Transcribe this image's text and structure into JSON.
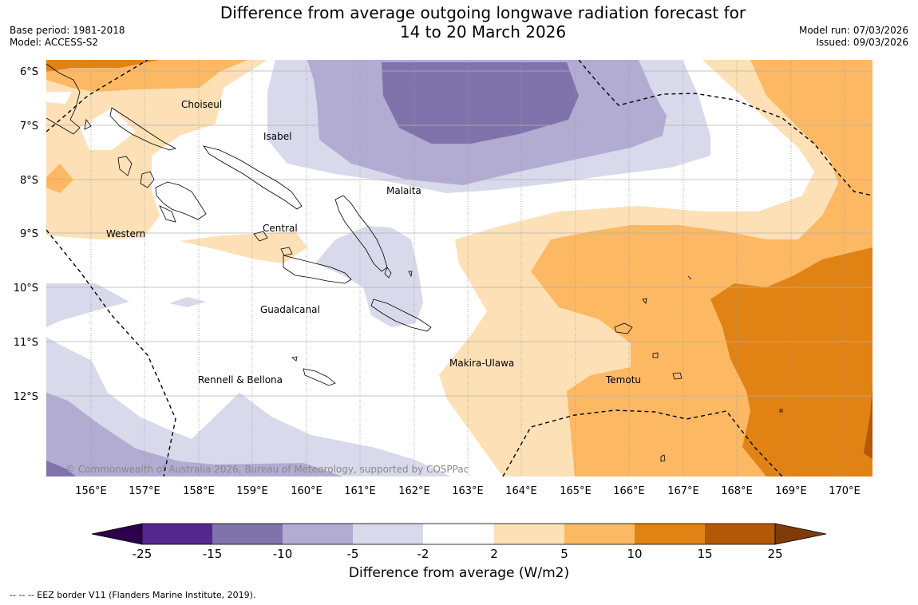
{
  "title": {
    "line1": "Difference from average outgoing longwave radiation forecast for",
    "line2": "14 to 20 March 2026"
  },
  "meta_left": {
    "base_period": "Base period: 1981-2018",
    "model": "Model: ACCESS-S2"
  },
  "meta_right": {
    "model_run": "Model run: 07/03/2026",
    "issued": "Issued: 09/03/2026"
  },
  "map": {
    "lon_ticks": [
      "156°E",
      "157°E",
      "158°E",
      "159°E",
      "160°E",
      "161°E",
      "162°E",
      "163°E",
      "164°E",
      "165°E",
      "166°E",
      "167°E",
      "168°E",
      "169°E",
      "170°E"
    ],
    "lat_ticks": [
      "6°S",
      "7°S",
      "8°S",
      "9°S",
      "10°S",
      "11°S",
      "12°S"
    ],
    "provinces": [
      {
        "name": "Choiseul",
        "lon": 157.7,
        "lat": -6.6
      },
      {
        "name": "Isabel",
        "lon": 159.3,
        "lat": -7.2
      },
      {
        "name": "Malaita",
        "lon": 161.0,
        "lat": -8.2
      },
      {
        "name": "Western",
        "lon": 156.3,
        "lat": -9.0
      },
      {
        "name": "Central",
        "lon": 159.4,
        "lat": -8.9
      },
      {
        "name": "Guadalcanal",
        "lon": 159.6,
        "lat": -10.4
      },
      {
        "name": "Makira-Ulawa",
        "lon": 162.7,
        "lat": -11.4
      },
      {
        "name": "Rennell & Bellona",
        "lon": 158.8,
        "lat": -11.7
      },
      {
        "name": "Temotu",
        "lon": 165.9,
        "lat": -11.7
      }
    ],
    "copyright": "© Commonwealth of Australia 2026, Bureau of Meteorology, supported by COSPPac"
  },
  "colorbar": {
    "label": "Difference from average (W/m2)",
    "ticks": [
      "-25",
      "-15",
      "-10",
      "-5",
      "-2",
      "2",
      "5",
      "10",
      "15",
      "25"
    ],
    "colors": [
      "#54278f",
      "#8073ac",
      "#b2abd2",
      "#d8daeb",
      "#ffffff",
      "#fee0b6",
      "#fdb863",
      "#e08214",
      "#b35806"
    ],
    "extend_low": "#2d004b",
    "extend_high": "#7f3b08"
  },
  "footer": "--  --  -- EEZ border V11 (Flanders Marine Institute, 2019)."
}
